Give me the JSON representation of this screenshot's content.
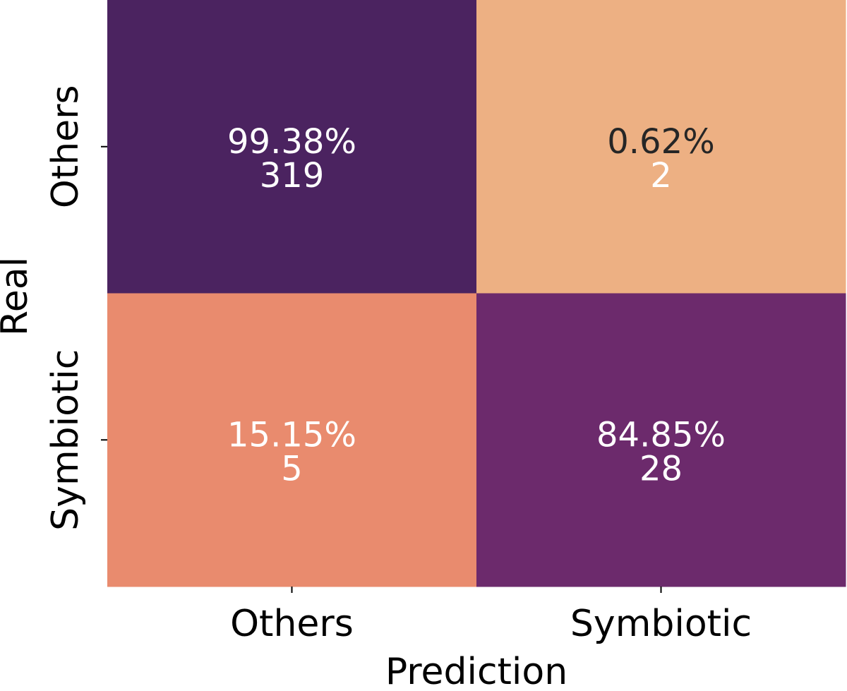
{
  "chart_data": {
    "type": "heatmap",
    "x_label": "Prediction",
    "y_label": "Real",
    "x_categories": [
      "Others",
      "Symbiotic"
    ],
    "y_categories": [
      "Others",
      "Symbiotic"
    ],
    "values": [
      [
        99.38,
        0.62
      ],
      [
        15.15,
        84.85
      ]
    ],
    "value_labels": [
      [
        "99.38%",
        "0.62%"
      ],
      [
        "15.15%",
        "84.85%"
      ]
    ],
    "counts": [
      [
        319,
        2
      ],
      [
        5,
        28
      ]
    ],
    "colors": [
      [
        "#4b2360",
        "#edb083"
      ],
      [
        "#e98b6e",
        "#6c2a6c"
      ]
    ],
    "label_colors": [
      [
        "#ffffff",
        "#262626"
      ],
      [
        "#ffffff",
        "#ffffff"
      ]
    ]
  }
}
